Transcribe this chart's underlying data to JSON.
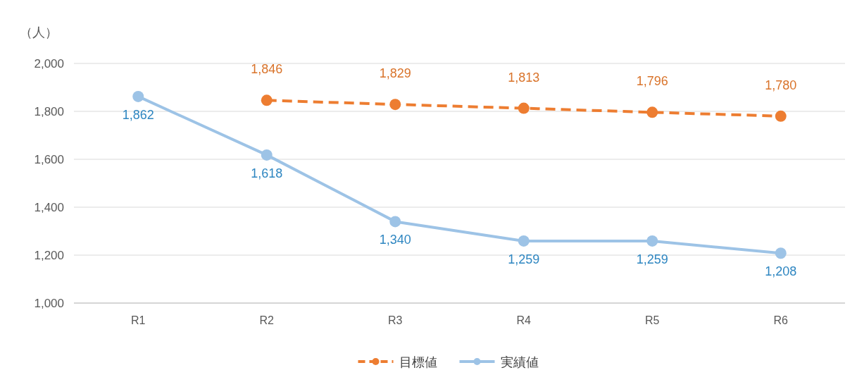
{
  "chart_data": {
    "type": "line",
    "ylabel": "（人）",
    "categories": [
      "R1",
      "R2",
      "R3",
      "R4",
      "R5",
      "R6"
    ],
    "series": [
      {
        "name": "目標値",
        "color": "#ed7d31",
        "values": [
          null,
          1846,
          1829,
          1813,
          1796,
          1780
        ],
        "value_labels": [
          null,
          "1,846",
          "1,829",
          "1,813",
          "1,796",
          "1,780"
        ],
        "line_style": "dashed"
      },
      {
        "name": "実績値",
        "color": "#9dc3e6",
        "values": [
          1862,
          1618,
          1340,
          1259,
          1259,
          1208
        ],
        "value_labels": [
          "1,862",
          "1,618",
          "1,340",
          "1,259",
          "1,259",
          "1,208"
        ],
        "line_style": "solid"
      }
    ],
    "ylim": [
      1000,
      2000
    ],
    "yticks": [
      {
        "value": 1000,
        "label": "1,000"
      },
      {
        "value": 1200,
        "label": "1,200"
      },
      {
        "value": 1400,
        "label": "1,400"
      },
      {
        "value": 1600,
        "label": "1,600"
      },
      {
        "value": 1800,
        "label": "1,800"
      },
      {
        "value": 2000,
        "label": "2,000"
      }
    ],
    "grid": "y",
    "legend": "bottom",
    "marker": "circle"
  }
}
